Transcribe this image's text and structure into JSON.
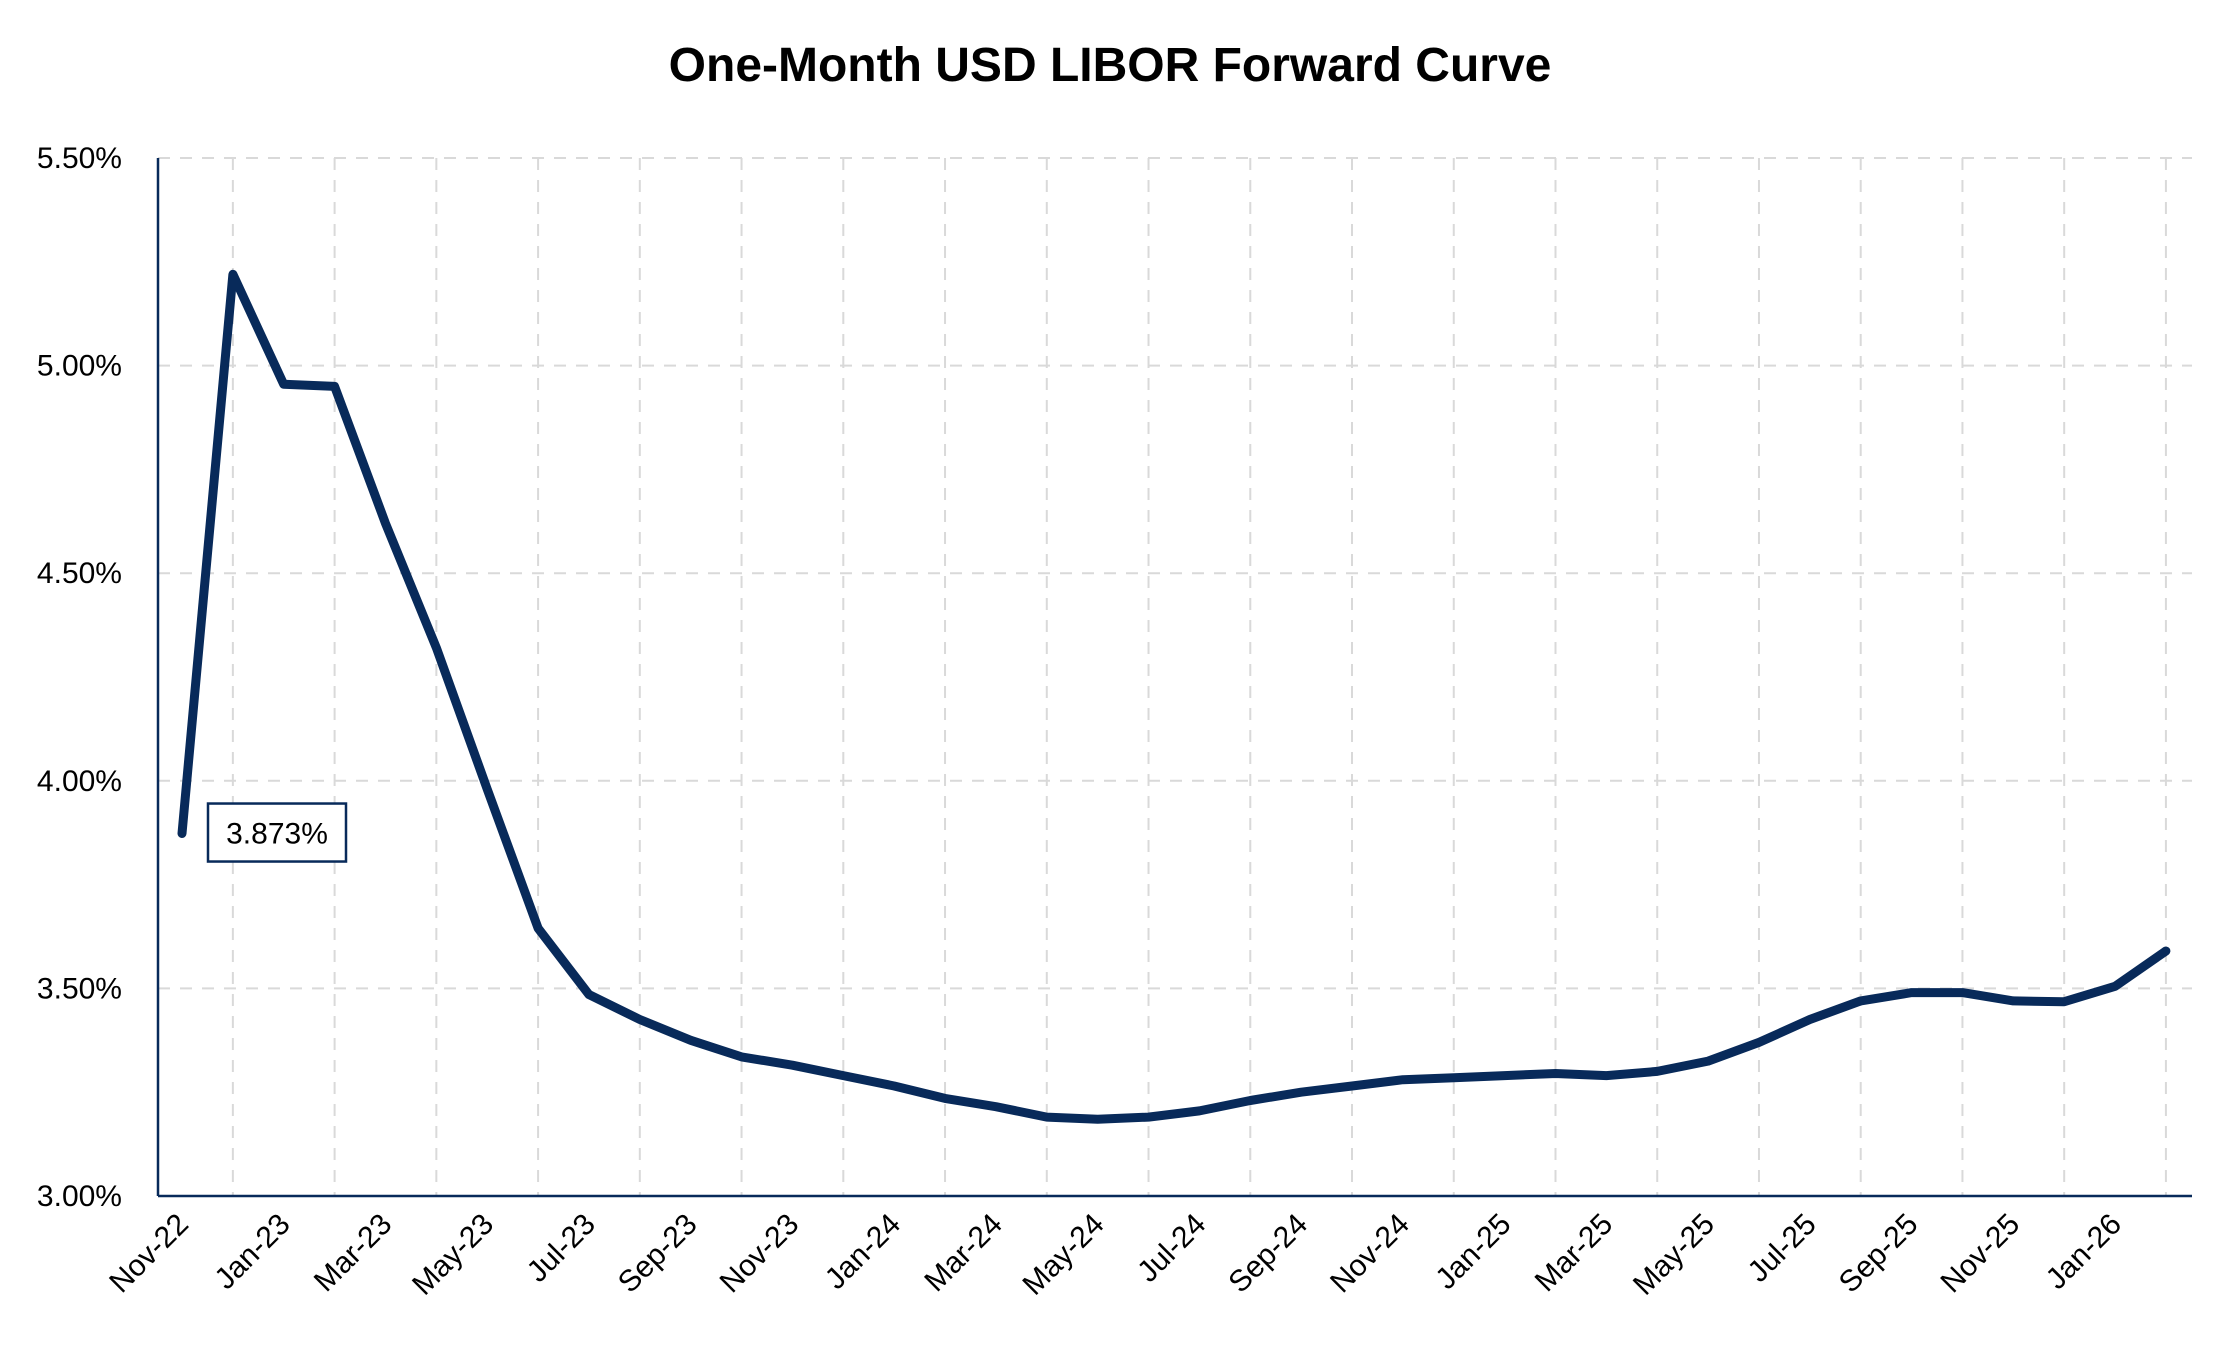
{
  "chart_data": {
    "type": "line",
    "title": "One-Month USD LIBOR Forward Curve",
    "xlabel": "",
    "ylabel": "",
    "ylim": [
      3.0,
      5.5
    ],
    "y_ticks": [
      "3.00%",
      "3.50%",
      "4.00%",
      "4.50%",
      "5.00%",
      "5.50%"
    ],
    "x_ticks": [
      "Nov-22",
      "Jan-23",
      "Mar-23",
      "May-23",
      "Jul-23",
      "Sep-23",
      "Nov-23",
      "Jan-24",
      "Mar-24",
      "May-24",
      "Jul-24",
      "Sep-24",
      "Nov-24",
      "Jan-25",
      "Mar-25",
      "May-25",
      "Jul-25",
      "Sep-25",
      "Nov-25",
      "Jan-26"
    ],
    "grid": true,
    "legend": "none",
    "x": [
      "Nov-22",
      "Dec-22",
      "Jan-23",
      "Feb-23",
      "Mar-23",
      "Apr-23",
      "May-23",
      "Jun-23",
      "Jul-23",
      "Aug-23",
      "Sep-23",
      "Oct-23",
      "Nov-23",
      "Dec-23",
      "Jan-24",
      "Feb-24",
      "Mar-24",
      "Apr-24",
      "May-24",
      "Jun-24",
      "Jul-24",
      "Aug-24",
      "Sep-24",
      "Oct-24",
      "Nov-24",
      "Dec-24",
      "Jan-25",
      "Feb-25",
      "Mar-25",
      "Apr-25",
      "May-25",
      "Jun-25",
      "Jul-25",
      "Aug-25",
      "Sep-25",
      "Oct-25",
      "Nov-25",
      "Dec-25",
      "Jan-26",
      "Feb-26"
    ],
    "series": [
      {
        "name": "",
        "color": "#082a5a",
        "values": [
          3.873,
          5.22,
          4.955,
          4.95,
          4.62,
          4.32,
          3.98,
          3.645,
          3.485,
          3.425,
          3.375,
          3.335,
          3.315,
          3.29,
          3.265,
          3.235,
          3.215,
          3.19,
          3.185,
          3.19,
          3.205,
          3.23,
          3.25,
          3.265,
          3.28,
          3.285,
          3.29,
          3.295,
          3.29,
          3.3,
          3.325,
          3.37,
          3.425,
          3.47,
          3.49,
          3.49,
          3.47,
          3.468,
          3.505,
          3.59
        ]
      }
    ],
    "annotations": [
      {
        "text": "3.873%",
        "x": "Nov-22",
        "y": 3.873
      }
    ]
  }
}
